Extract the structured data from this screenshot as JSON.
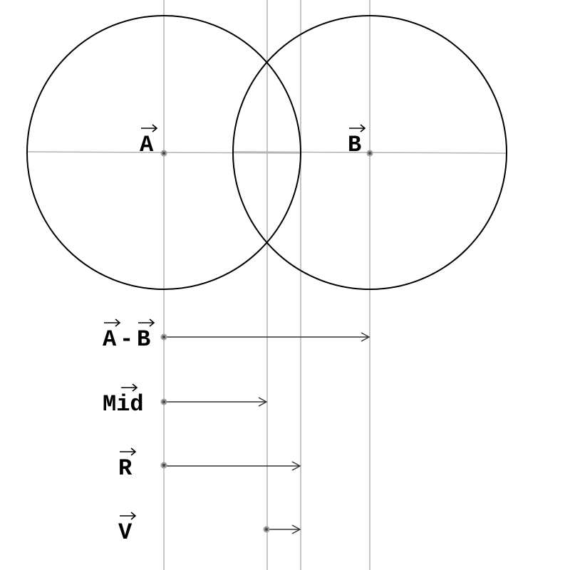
{
  "diagram": {
    "label_A": "A",
    "label_B": "B",
    "vectors": [
      {
        "key": "amb",
        "parts": [
          "A",
          "-",
          "B"
        ],
        "arrow_over": [
          0,
          2
        ]
      },
      {
        "key": "mid",
        "parts": [
          "M",
          "i",
          "d"
        ],
        "arrow_over_span": [
          1,
          2
        ]
      },
      {
        "key": "r",
        "parts": [
          "R"
        ],
        "arrow_over": [
          0
        ]
      },
      {
        "key": "v",
        "parts": [
          "V"
        ],
        "arrow_over": [
          0
        ]
      }
    ],
    "label_amb_A": "A",
    "label_amb_dash": "-",
    "label_amb_B": "B",
    "label_mid": "Mid",
    "label_r": "R",
    "label_v": "V"
  }
}
